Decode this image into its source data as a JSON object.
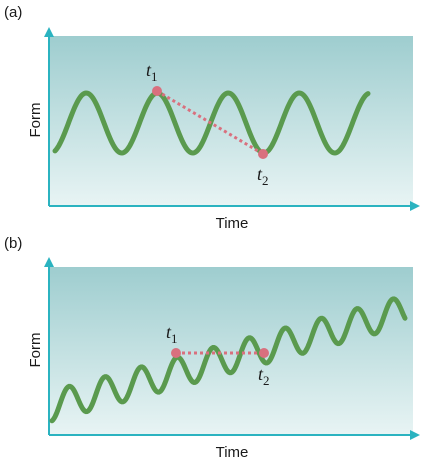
{
  "colors": {
    "panel_top": "#9ecdcf",
    "panel_bottom": "#e8f4f4",
    "axis": "#2bb3c0",
    "wave": "#5a9a4e",
    "point": "#d9707e",
    "connector": "#d9707e"
  },
  "panel_a": {
    "label": "(a)",
    "x_axis_label": "Time",
    "y_axis_label": "Form",
    "point1": {
      "symbol": "t",
      "subscript": "1"
    },
    "point2": {
      "symbol": "t",
      "subscript": "2"
    }
  },
  "panel_b": {
    "label": "(b)",
    "x_axis_label": "Time",
    "y_axis_label": "Form",
    "point1": {
      "symbol": "t",
      "subscript": "1"
    },
    "point2": {
      "symbol": "t",
      "subscript": "2"
    }
  }
}
